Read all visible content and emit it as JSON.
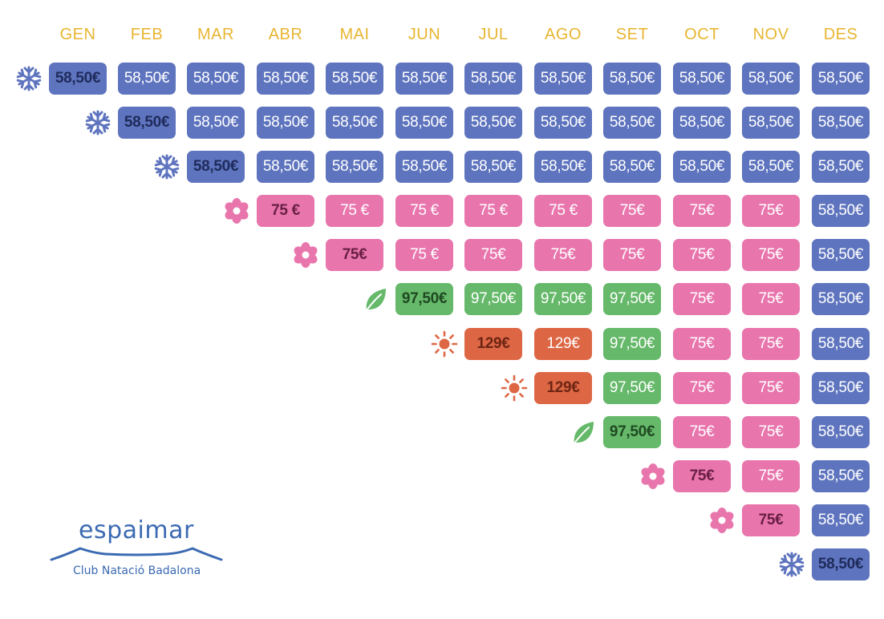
{
  "months": [
    "GEN",
    "FEB",
    "MAR",
    "ABR",
    "MAI",
    "JUN",
    "JUL",
    "AGO",
    "SET",
    "OCT",
    "NOV",
    "DES"
  ],
  "colors": {
    "header": "#e8b531",
    "winter": "#5e74be",
    "spring": "#e876ad",
    "summer": "#66b96a",
    "high": "#dd6745",
    "logo": "#3b6ab2"
  },
  "rows": [
    {
      "start_icon": "snowflake-icon",
      "cells": [
        {
          "label": "58,50€",
          "season": "winter"
        },
        {
          "label": "58,50€",
          "season": "winter"
        },
        {
          "label": "58,50€",
          "season": "winter"
        },
        {
          "label": "58,50€",
          "season": "winter"
        },
        {
          "label": "58,50€",
          "season": "winter"
        },
        {
          "label": "58,50€",
          "season": "winter"
        },
        {
          "label": "58,50€",
          "season": "winter"
        },
        {
          "label": "58,50€",
          "season": "winter"
        },
        {
          "label": "58,50€",
          "season": "winter"
        },
        {
          "label": "58,50€",
          "season": "winter"
        },
        {
          "label": "58,50€",
          "season": "winter"
        },
        {
          "label": "58,50€",
          "season": "winter"
        }
      ]
    },
    {
      "start_icon": "snowflake-icon",
      "cells": [
        {
          "label": "58,50€",
          "season": "winter"
        },
        {
          "label": "58,50€",
          "season": "winter"
        },
        {
          "label": "58,50€",
          "season": "winter"
        },
        {
          "label": "58,50€",
          "season": "winter"
        },
        {
          "label": "58,50€",
          "season": "winter"
        },
        {
          "label": "58,50€",
          "season": "winter"
        },
        {
          "label": "58,50€",
          "season": "winter"
        },
        {
          "label": "58,50€",
          "season": "winter"
        },
        {
          "label": "58,50€",
          "season": "winter"
        },
        {
          "label": "58,50€",
          "season": "winter"
        },
        {
          "label": "58,50€",
          "season": "winter"
        }
      ]
    },
    {
      "start_icon": "snowflake-icon",
      "cells": [
        {
          "label": "58,50€",
          "season": "winter"
        },
        {
          "label": "58,50€",
          "season": "winter"
        },
        {
          "label": "58,50€",
          "season": "winter"
        },
        {
          "label": "58,50€",
          "season": "winter"
        },
        {
          "label": "58,50€",
          "season": "winter"
        },
        {
          "label": "58,50€",
          "season": "winter"
        },
        {
          "label": "58,50€",
          "season": "winter"
        },
        {
          "label": "58,50€",
          "season": "winter"
        },
        {
          "label": "58,50€",
          "season": "winter"
        },
        {
          "label": "58,50€",
          "season": "winter"
        }
      ]
    },
    {
      "start_icon": "flower-icon",
      "cells": [
        {
          "label": "75 €",
          "season": "spring"
        },
        {
          "label": "75 €",
          "season": "spring"
        },
        {
          "label": "75 €",
          "season": "spring"
        },
        {
          "label": "75 €",
          "season": "spring"
        },
        {
          "label": "75 €",
          "season": "spring"
        },
        {
          "label": "75€",
          "season": "spring"
        },
        {
          "label": "75€",
          "season": "spring"
        },
        {
          "label": "75€",
          "season": "spring"
        },
        {
          "label": "58,50€",
          "season": "winter"
        }
      ]
    },
    {
      "start_icon": "flower-icon",
      "cells": [
        {
          "label": "75€",
          "season": "spring"
        },
        {
          "label": "75 €",
          "season": "spring"
        },
        {
          "label": "75€",
          "season": "spring"
        },
        {
          "label": "75€",
          "season": "spring"
        },
        {
          "label": "75€",
          "season": "spring"
        },
        {
          "label": "75€",
          "season": "spring"
        },
        {
          "label": "75€",
          "season": "spring"
        },
        {
          "label": "58,50€",
          "season": "winter"
        }
      ]
    },
    {
      "start_icon": "leaf-icon",
      "cells": [
        {
          "label": "97,50€",
          "season": "summer"
        },
        {
          "label": "97,50€",
          "season": "summer"
        },
        {
          "label": "97,50€",
          "season": "summer"
        },
        {
          "label": "97,50€",
          "season": "summer"
        },
        {
          "label": "75€",
          "season": "spring"
        },
        {
          "label": "75€",
          "season": "spring"
        },
        {
          "label": "58,50€",
          "season": "winter"
        }
      ]
    },
    {
      "start_icon": "sun-icon",
      "cells": [
        {
          "label": "129€",
          "season": "high"
        },
        {
          "label": "129€",
          "season": "high"
        },
        {
          "label": "97,50€",
          "season": "summer"
        },
        {
          "label": "75€",
          "season": "spring"
        },
        {
          "label": "75€",
          "season": "spring"
        },
        {
          "label": "58,50€",
          "season": "winter"
        }
      ]
    },
    {
      "start_icon": "sun-icon",
      "cells": [
        {
          "label": "129€",
          "season": "high"
        },
        {
          "label": "97,50€",
          "season": "summer"
        },
        {
          "label": "75€",
          "season": "spring"
        },
        {
          "label": "75€",
          "season": "spring"
        },
        {
          "label": "58,50€",
          "season": "winter"
        }
      ]
    },
    {
      "start_icon": "leaf-icon",
      "cells": [
        {
          "label": "97,50€",
          "season": "summer"
        },
        {
          "label": "75€",
          "season": "spring"
        },
        {
          "label": "75€",
          "season": "spring"
        },
        {
          "label": "58,50€",
          "season": "winter"
        }
      ]
    },
    {
      "start_icon": "flower-icon",
      "cells": [
        {
          "label": "75€",
          "season": "spring"
        },
        {
          "label": "75€",
          "season": "spring"
        },
        {
          "label": "58,50€",
          "season": "winter"
        }
      ]
    },
    {
      "start_icon": "flower-icon",
      "cells": [
        {
          "label": "75€",
          "season": "spring"
        },
        {
          "label": "58,50€",
          "season": "winter"
        }
      ]
    },
    {
      "start_icon": "snowflake-icon",
      "cells": [
        {
          "label": "58,50€",
          "season": "winter"
        }
      ]
    }
  ],
  "logo": {
    "name": "espaimar",
    "subtitle": "Club Natació Badalona"
  }
}
